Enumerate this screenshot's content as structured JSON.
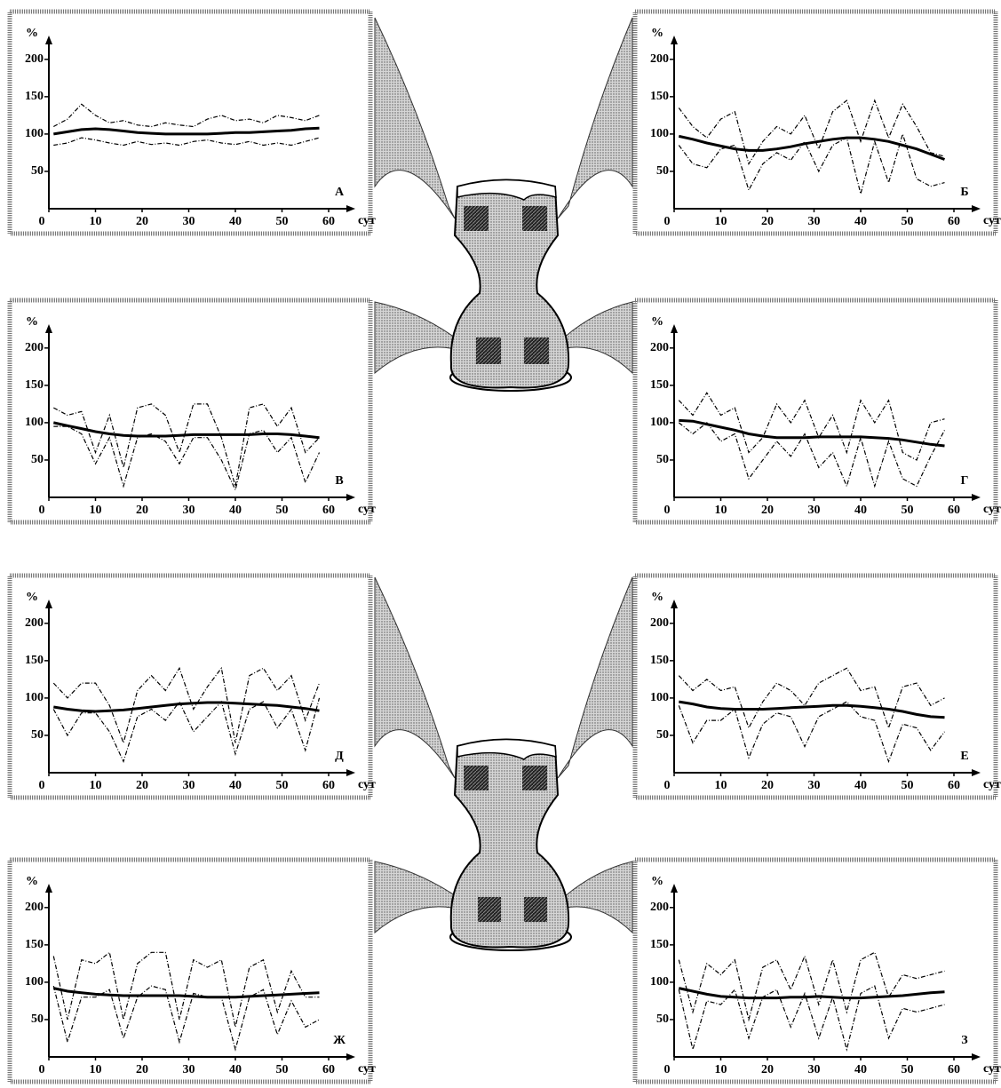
{
  "chart_data": [
    {
      "type": "line",
      "title": "А",
      "x_label": "сут",
      "y_label": "%",
      "x": [
        1,
        4,
        7,
        10,
        13,
        16,
        19,
        22,
        25,
        28,
        31,
        34,
        37,
        40,
        43,
        46,
        49,
        52,
        55,
        58
      ],
      "xlim": [
        0,
        60
      ],
      "ylim": [
        0,
        220
      ],
      "xticks": [
        0,
        10,
        20,
        30,
        40,
        50,
        60
      ],
      "yticks": [
        50,
        100,
        150,
        200
      ],
      "series": [
        {
          "color": "#000000",
          "dash": false,
          "values": [
            100,
            103,
            106,
            107,
            106,
            104,
            102,
            101,
            100,
            100,
            100,
            100,
            101,
            102,
            102,
            103,
            104,
            105,
            107,
            108
          ]
        },
        {
          "color": "#000000",
          "dash": true,
          "values": [
            110,
            120,
            140,
            125,
            115,
            118,
            112,
            110,
            115,
            112,
            110,
            120,
            125,
            118,
            120,
            115,
            125,
            122,
            118,
            125
          ]
        },
        {
          "color": "#000000",
          "dash": true,
          "values": [
            85,
            88,
            95,
            92,
            88,
            85,
            90,
            86,
            88,
            85,
            90,
            92,
            88,
            86,
            90,
            85,
            88,
            85,
            90,
            95
          ]
        }
      ]
    },
    {
      "type": "line",
      "title": "Б",
      "x_label": "сут",
      "y_label": "%",
      "x": [
        1,
        4,
        7,
        10,
        13,
        16,
        19,
        22,
        25,
        28,
        31,
        34,
        37,
        40,
        43,
        46,
        49,
        52,
        55,
        58
      ],
      "xlim": [
        0,
        60
      ],
      "ylim": [
        0,
        220
      ],
      "xticks": [
        0,
        10,
        20,
        30,
        40,
        50,
        60
      ],
      "yticks": [
        50,
        100,
        150,
        200
      ],
      "series": [
        {
          "color": "#000000",
          "dash": false,
          "values": [
            97,
            93,
            88,
            84,
            80,
            78,
            78,
            80,
            83,
            87,
            90,
            93,
            95,
            95,
            93,
            90,
            85,
            80,
            73,
            66
          ]
        },
        {
          "color": "#000000",
          "dash": true,
          "values": [
            135,
            110,
            95,
            120,
            130,
            60,
            90,
            110,
            100,
            125,
            80,
            130,
            145,
            90,
            145,
            95,
            140,
            110,
            75,
            70
          ]
        },
        {
          "color": "#000000",
          "dash": true,
          "values": [
            85,
            60,
            55,
            80,
            85,
            25,
            60,
            75,
            65,
            90,
            50,
            85,
            95,
            20,
            90,
            35,
            100,
            40,
            30,
            35
          ]
        }
      ]
    },
    {
      "type": "line",
      "title": "В",
      "x_label": "сут",
      "y_label": "%",
      "x": [
        1,
        4,
        7,
        10,
        13,
        16,
        19,
        22,
        25,
        28,
        31,
        34,
        37,
        40,
        43,
        46,
        49,
        52,
        55,
        58
      ],
      "xlim": [
        0,
        60
      ],
      "ylim": [
        0,
        220
      ],
      "xticks": [
        0,
        10,
        20,
        30,
        40,
        50,
        60
      ],
      "yticks": [
        50,
        100,
        150,
        200
      ],
      "series": [
        {
          "color": "#000000",
          "dash": false,
          "values": [
            100,
            96,
            92,
            88,
            85,
            83,
            82,
            82,
            82,
            83,
            84,
            84,
            84,
            84,
            84,
            85,
            85,
            84,
            82,
            80
          ]
        },
        {
          "color": "#000000",
          "dash": true,
          "values": [
            120,
            110,
            115,
            60,
            110,
            40,
            120,
            125,
            110,
            60,
            125,
            125,
            80,
            15,
            120,
            125,
            95,
            120,
            60,
            80
          ]
        },
        {
          "color": "#000000",
          "dash": true,
          "values": [
            95,
            95,
            85,
            45,
            80,
            15,
            80,
            85,
            75,
            45,
            80,
            80,
            50,
            10,
            85,
            90,
            60,
            80,
            20,
            60
          ]
        }
      ]
    },
    {
      "type": "line",
      "title": "Г",
      "x_label": "сут",
      "y_label": "%",
      "x": [
        1,
        4,
        7,
        10,
        13,
        16,
        19,
        22,
        25,
        28,
        31,
        34,
        37,
        40,
        43,
        46,
        49,
        52,
        55,
        58
      ],
      "xlim": [
        0,
        60
      ],
      "ylim": [
        0,
        220
      ],
      "xticks": [
        0,
        10,
        20,
        30,
        40,
        50,
        60
      ],
      "yticks": [
        50,
        100,
        150,
        200
      ],
      "series": [
        {
          "color": "#000000",
          "dash": false,
          "values": [
            103,
            102,
            98,
            94,
            90,
            85,
            82,
            80,
            80,
            80,
            81,
            81,
            81,
            81,
            80,
            79,
            77,
            74,
            71,
            69
          ]
        },
        {
          "color": "#000000",
          "dash": true,
          "values": [
            130,
            110,
            140,
            110,
            120,
            60,
            80,
            125,
            100,
            130,
            80,
            110,
            60,
            130,
            100,
            130,
            60,
            50,
            100,
            105
          ]
        },
        {
          "color": "#000000",
          "dash": true,
          "values": [
            100,
            85,
            100,
            75,
            85,
            25,
            50,
            75,
            55,
            85,
            40,
            60,
            15,
            80,
            15,
            75,
            25,
            15,
            55,
            90
          ]
        }
      ]
    },
    {
      "type": "line",
      "title": "Д",
      "x_label": "сут",
      "y_label": "%",
      "x": [
        1,
        4,
        7,
        10,
        13,
        16,
        19,
        22,
        25,
        28,
        31,
        34,
        37,
        40,
        43,
        46,
        49,
        52,
        55,
        58
      ],
      "xlim": [
        0,
        60
      ],
      "ylim": [
        0,
        220
      ],
      "xticks": [
        0,
        10,
        20,
        30,
        40,
        50,
        60
      ],
      "yticks": [
        50,
        100,
        150,
        200
      ],
      "series": [
        {
          "color": "#000000",
          "dash": false,
          "values": [
            88,
            85,
            83,
            82,
            83,
            84,
            86,
            88,
            90,
            92,
            93,
            94,
            94,
            93,
            92,
            91,
            90,
            88,
            86,
            83
          ]
        },
        {
          "color": "#000000",
          "dash": true,
          "values": [
            120,
            100,
            120,
            120,
            90,
            40,
            110,
            130,
            110,
            140,
            85,
            115,
            140,
            40,
            130,
            140,
            110,
            130,
            70,
            120
          ]
        },
        {
          "color": "#000000",
          "dash": true,
          "values": [
            85,
            50,
            80,
            80,
            55,
            15,
            75,
            85,
            70,
            95,
            55,
            75,
            95,
            25,
            85,
            95,
            60,
            85,
            30,
            100
          ]
        }
      ]
    },
    {
      "type": "line",
      "title": "Е",
      "x_label": "сут",
      "y_label": "%",
      "x": [
        1,
        4,
        7,
        10,
        13,
        16,
        19,
        22,
        25,
        28,
        31,
        34,
        37,
        40,
        43,
        46,
        49,
        52,
        55,
        58
      ],
      "xlim": [
        0,
        60
      ],
      "ylim": [
        0,
        220
      ],
      "xticks": [
        0,
        10,
        20,
        30,
        40,
        50,
        60
      ],
      "yticks": [
        50,
        100,
        150,
        200
      ],
      "series": [
        {
          "color": "#000000",
          "dash": false,
          "values": [
            95,
            92,
            88,
            86,
            85,
            85,
            85,
            86,
            87,
            88,
            89,
            90,
            90,
            89,
            87,
            85,
            82,
            78,
            75,
            74
          ]
        },
        {
          "color": "#000000",
          "dash": true,
          "values": [
            130,
            110,
            125,
            110,
            115,
            60,
            95,
            120,
            110,
            90,
            120,
            130,
            140,
            110,
            115,
            60,
            115,
            120,
            90,
            100
          ]
        },
        {
          "color": "#000000",
          "dash": true,
          "values": [
            90,
            40,
            70,
            70,
            85,
            20,
            65,
            80,
            75,
            35,
            75,
            85,
            95,
            75,
            70,
            15,
            65,
            60,
            30,
            55
          ]
        }
      ]
    },
    {
      "type": "line",
      "title": "Ж",
      "x_label": "сут",
      "y_label": "%",
      "x": [
        1,
        4,
        7,
        10,
        13,
        16,
        19,
        22,
        25,
        28,
        31,
        34,
        37,
        40,
        43,
        46,
        49,
        52,
        55,
        58
      ],
      "xlim": [
        0,
        60
      ],
      "ylim": [
        0,
        220
      ],
      "xticks": [
        0,
        10,
        20,
        30,
        40,
        50,
        60
      ],
      "yticks": [
        50,
        100,
        150,
        200
      ],
      "series": [
        {
          "color": "#000000",
          "dash": false,
          "values": [
            92,
            88,
            86,
            84,
            83,
            82,
            82,
            82,
            82,
            82,
            81,
            80,
            80,
            80,
            81,
            82,
            83,
            84,
            85,
            86
          ]
        },
        {
          "color": "#000000",
          "dash": true,
          "values": [
            135,
            50,
            130,
            125,
            140,
            50,
            125,
            140,
            140,
            50,
            130,
            120,
            130,
            40,
            120,
            130,
            60,
            115,
            80,
            80
          ]
        },
        {
          "color": "#000000",
          "dash": true,
          "values": [
            95,
            20,
            80,
            80,
            90,
            25,
            80,
            95,
            90,
            20,
            85,
            80,
            80,
            10,
            80,
            90,
            30,
            75,
            40,
            50
          ]
        }
      ]
    },
    {
      "type": "line",
      "title": "З",
      "x_label": "сут",
      "y_label": "%",
      "x": [
        1,
        4,
        7,
        10,
        13,
        16,
        19,
        22,
        25,
        28,
        31,
        34,
        37,
        40,
        43,
        46,
        49,
        52,
        55,
        58
      ],
      "xlim": [
        0,
        60
      ],
      "ylim": [
        0,
        220
      ],
      "xticks": [
        0,
        10,
        20,
        30,
        40,
        50,
        60
      ],
      "yticks": [
        50,
        100,
        150,
        200
      ],
      "series": [
        {
          "color": "#000000",
          "dash": false,
          "values": [
            92,
            88,
            84,
            81,
            80,
            79,
            79,
            79,
            80,
            80,
            81,
            80,
            79,
            79,
            80,
            81,
            82,
            84,
            86,
            87
          ]
        },
        {
          "color": "#000000",
          "dash": true,
          "values": [
            130,
            60,
            125,
            110,
            130,
            50,
            120,
            130,
            90,
            135,
            70,
            130,
            60,
            130,
            140,
            80,
            110,
            105,
            110,
            115
          ]
        },
        {
          "color": "#000000",
          "dash": true,
          "values": [
            90,
            10,
            75,
            70,
            90,
            25,
            80,
            90,
            40,
            85,
            25,
            80,
            10,
            85,
            95,
            25,
            65,
            60,
            65,
            70
          ]
        }
      ]
    }
  ]
}
